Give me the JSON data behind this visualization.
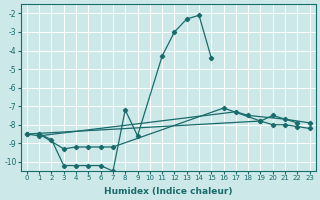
{
  "xlabel": "Humidex (Indice chaleur)",
  "ylabel": "",
  "background_color": "#cce8e8",
  "grid_color": "#ffffff",
  "line_color": "#1a6b6b",
  "xlim": [
    -0.5,
    23.5
  ],
  "ylim": [
    -10.5,
    -1.5
  ],
  "yticks": [
    -2,
    -3,
    -4,
    -5,
    -6,
    -7,
    -8,
    -9,
    -10
  ],
  "xticks": [
    0,
    1,
    2,
    3,
    4,
    5,
    6,
    7,
    8,
    9,
    10,
    11,
    12,
    13,
    14,
    15,
    16,
    17,
    18,
    19,
    20,
    21,
    22,
    23
  ],
  "series": [
    {
      "points": [
        [
          1,
          -8.5
        ],
        [
          2,
          -8.8
        ],
        [
          3,
          -10.2
        ],
        [
          4,
          -10.2
        ],
        [
          5,
          -10.2
        ],
        [
          6,
          -10.2
        ],
        [
          7,
          -10.5
        ],
        [
          8,
          -7.2
        ],
        [
          9,
          -8.6
        ],
        [
          11,
          -4.3
        ],
        [
          12,
          -3.0
        ],
        [
          13,
          -2.3
        ],
        [
          14,
          -2.1
        ],
        [
          15,
          -4.4
        ]
      ]
    },
    {
      "points": [
        [
          1,
          -8.5
        ],
        [
          3,
          -9.3
        ],
        [
          4,
          -9.2
        ],
        [
          5,
          -9.2
        ],
        [
          6,
          -9.2
        ],
        [
          7,
          -9.2
        ],
        [
          16,
          -7.1
        ],
        [
          19,
          -7.8
        ],
        [
          20,
          -7.5
        ],
        [
          22,
          -7.9
        ]
      ]
    },
    {
      "points": [
        [
          0,
          -8.5
        ],
        [
          1,
          -8.6
        ],
        [
          17,
          -7.3
        ],
        [
          18,
          -7.5
        ],
        [
          21,
          -7.7
        ],
        [
          23,
          -7.9
        ]
      ]
    },
    {
      "points": [
        [
          0,
          -8.5
        ],
        [
          19,
          -7.8
        ],
        [
          20,
          -8.0
        ],
        [
          21,
          -8.0
        ],
        [
          22,
          -8.1
        ],
        [
          23,
          -8.2
        ]
      ]
    }
  ]
}
